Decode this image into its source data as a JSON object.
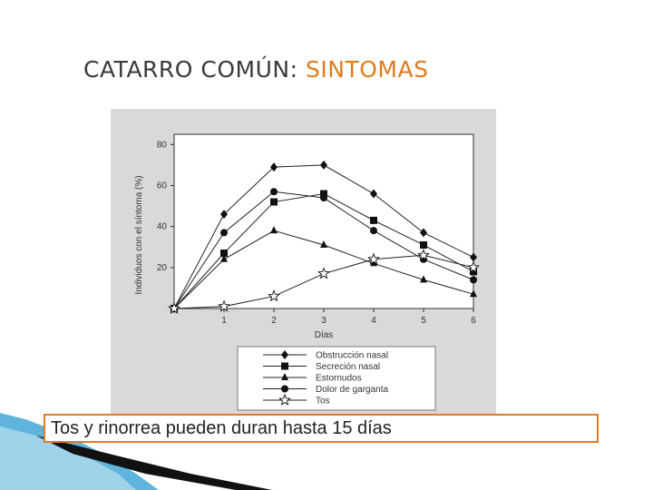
{
  "slide": {
    "title_main": "CATARRO COMÚN:",
    "title_accent": "SINTOMAS",
    "caption": "Tos y rinorrea pueden duran hasta 15 días",
    "colors": {
      "accent": "#e07b1f",
      "title": "#3a3a3a",
      "figure_bg": "#d9d9d9",
      "deco_blue": "#4aa3cf"
    }
  },
  "chart_data": {
    "type": "line",
    "title": "",
    "xlabel": "Días",
    "ylabel": "Individuos con el síntoma (%)",
    "x": [
      0,
      1,
      2,
      3,
      4,
      5,
      6
    ],
    "x_tick_labels": [
      "1",
      "2",
      "3",
      "4",
      "5",
      "6"
    ],
    "y_tick_labels": [
      "20",
      "40",
      "60",
      "80"
    ],
    "xlim": [
      0,
      6
    ],
    "ylim": [
      0,
      85
    ],
    "grid": false,
    "legend_position": "bottom",
    "series": [
      {
        "name": "Obstrucción nasal",
        "marker": "diamond",
        "values": [
          0,
          46,
          69,
          70,
          56,
          37,
          25
        ]
      },
      {
        "name": "Secreción nasal",
        "marker": "square",
        "values": [
          0,
          27,
          52,
          56,
          43,
          31,
          18
        ]
      },
      {
        "name": "Estornudos",
        "marker": "triangle",
        "values": [
          0,
          24,
          38,
          31,
          22,
          14,
          7
        ]
      },
      {
        "name": "Dolor de garganta",
        "marker": "circle",
        "values": [
          0,
          37,
          57,
          54,
          38,
          24,
          14
        ]
      },
      {
        "name": "Tos",
        "marker": "star",
        "values": [
          0,
          1,
          6,
          17,
          24,
          26,
          20
        ]
      }
    ]
  }
}
